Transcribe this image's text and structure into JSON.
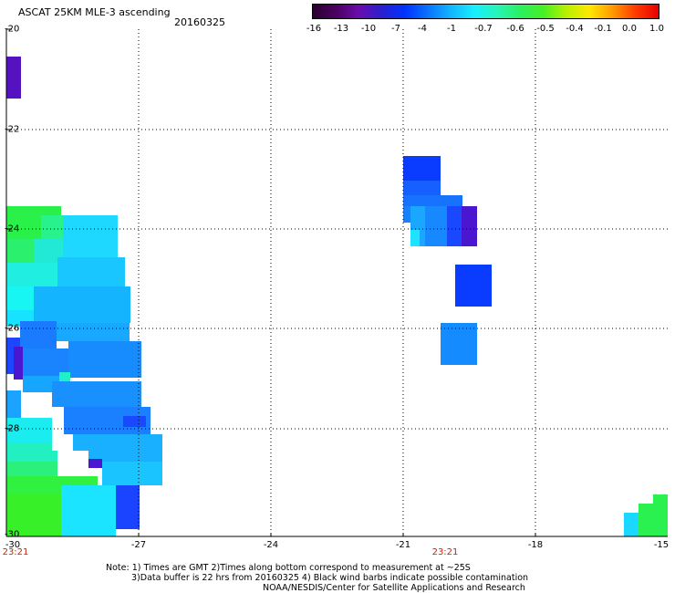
{
  "header": {
    "title": "ASCAT 25KM MLE-3 ascending",
    "date": "20160325"
  },
  "colorbar": {
    "labels": [
      "-16",
      "-13",
      "-10",
      "-7",
      "-4",
      "-1",
      "-0.7",
      "-0.6",
      "-0.5",
      "-0.4",
      "-0.1",
      "0.0",
      "1.0"
    ],
    "colors": [
      "#2a0030",
      "#4b0060",
      "#6a0dad",
      "#2a1fd0",
      "#0033ff",
      "#0a73ff",
      "#12b5ff",
      "#18efff",
      "#27f4b8",
      "#2bf060",
      "#46f024",
      "#b8f000",
      "#ffe800",
      "#ff9a00",
      "#ff3a00",
      "#e80000"
    ]
  },
  "axes": {
    "y_labels": [
      "-20",
      "-22",
      "-24",
      "-26",
      "-28",
      "-30"
    ],
    "x_labels": [
      "-30",
      "-27",
      "-24",
      "-21",
      "-18",
      "-15"
    ],
    "time_labels": [
      "23:21",
      "23:21"
    ]
  },
  "footer": {
    "line1": "Note: 1) Times are GMT 2)Times along bottom correspond to measurement at ~25S",
    "line2": "3)Data buffer is 22 hrs from 20160325 4) Black wind barbs indicate possible contamination",
    "line3": "NOAA/NESDIS/Center for Satellite Applications and Research"
  }
}
